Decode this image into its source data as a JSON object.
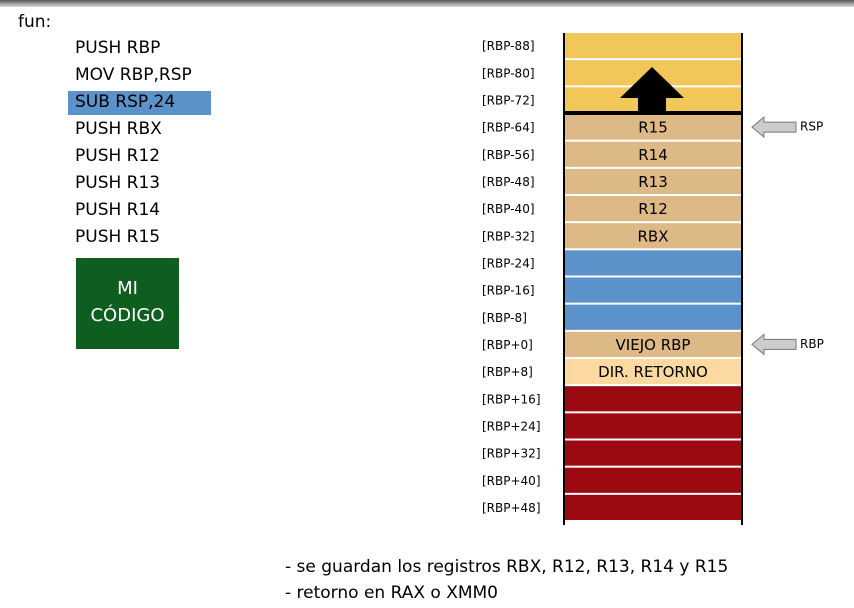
{
  "code": {
    "label": "fun:",
    "lines": [
      "PUSH RBP",
      "MOV  RBP,RSP",
      "SUB RSP,24",
      "PUSH RBX",
      "PUSH R12",
      "PUSH R13",
      "PUSH R14",
      "PUSH R15"
    ],
    "block": [
      "MI",
      "CÓDIGO"
    ]
  },
  "stack": {
    "rows": [
      {
        "offset": "[RBP-88]"
      },
      {
        "offset": "[RBP-80]"
      },
      {
        "offset": "[RBP-72]"
      },
      {
        "offset": "[RBP-64]",
        "content": "R15"
      },
      {
        "offset": "[RBP-56]",
        "content": "R14"
      },
      {
        "offset": "[RBP-48]",
        "content": "R13"
      },
      {
        "offset": "[RBP-40]",
        "content": "R12"
      },
      {
        "offset": "[RBP-32]",
        "content": "RBX"
      },
      {
        "offset": "[RBP-24]"
      },
      {
        "offset": "[RBP-16]"
      },
      {
        "offset": "[RBP-8]"
      },
      {
        "offset": "[RBP+0]",
        "content": "VIEJO RBP"
      },
      {
        "offset": "[RBP+8]",
        "content": "DIR. RETORNO"
      },
      {
        "offset": "[RBP+16]"
      },
      {
        "offset": "[RBP+24]"
      },
      {
        "offset": "[RBP+32]"
      },
      {
        "offset": "[RBP+40]"
      },
      {
        "offset": "[RBP+48]"
      }
    ],
    "pointers": [
      "RSP",
      "RBP"
    ]
  },
  "notes": [
    "- se guardan los registros RBX, R12, R13, R14 y R15",
    "- retorno en RAX o XMM0"
  ]
}
